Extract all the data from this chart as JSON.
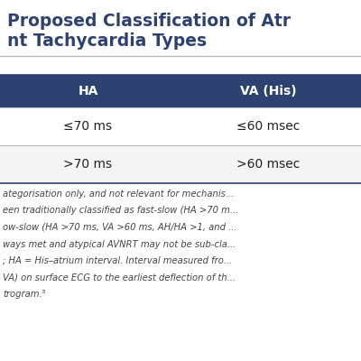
{
  "title_line1": "Proposed Classification of Atr",
  "title_line2": "nt Tachycardia Types",
  "header_bg": "#2E4272",
  "header_text_color": "#FFFFFF",
  "header_cols": [
    "HA",
    "VA (His)"
  ],
  "rows": [
    [
      "≤70 ms",
      "≤60 msec"
    ],
    [
      ">70 ms",
      ">60 msec"
    ]
  ],
  "row_bg_odd": "#FFFFFF",
  "row_bg_even": "#F5F5F5",
  "divider_color": "#BBBBBB",
  "title_color": "#2E4272",
  "footnote_color": "#444444",
  "footnote_lines": [
    "ategorisation only, and not relevant for mechanis...",
    "een traditionally classified as fast-slow (HA >70 m...",
    "ow-slow (HA >70 ms, VA >60 ms, AH/HA >1, and ...",
    "ways met and atypical AVNRT may not be sub-cla...",
    "; HA = His–atrium interval. Interval measured fro...",
    "VA) on surface ECG to the earliest deflection of th...",
    "trogram.⁵"
  ],
  "background_color": "#FFFFFF",
  "title_fontsize": 13.5,
  "header_fontsize": 10,
  "cell_fontsize": 10,
  "footnote_fontsize": 7.2
}
